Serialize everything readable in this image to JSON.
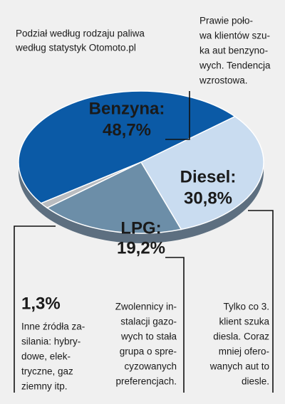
{
  "chart_data": {
    "type": "pie",
    "title": "Podział według rodzaju paliwa",
    "subtitle": "według statystyk Otomoto.pl",
    "categories": [
      "Benzyna:",
      "Diesel:",
      "LPG:",
      null
    ],
    "values": [
      48.7,
      30.8,
      19.2,
      1.3
    ],
    "value_labels": [
      "48,7%",
      "30,8%",
      "19,2%",
      "1,3%"
    ],
    "colors": [
      "#0b5aa6",
      "#c9dcf0",
      "#6c8ea8",
      "#b9bcc0"
    ],
    "annotations": [
      [
        "Prawie poło-",
        "wa klientów szu-",
        "ka aut benzyno-",
        "wych. Tendencja",
        "wzrostowa."
      ],
      [
        "Inne źródła za-",
        "silania: hybry-",
        "dowe, elek-",
        "tryczne, gaz",
        "ziemny itp."
      ],
      [
        "Zwolennicy in-",
        "stalacji gazo-",
        "wych to stała",
        "grupa o spre-",
        "cyzowanych",
        "preferencjach."
      ],
      [
        "Tylko co 3.",
        "klient szuka",
        "diesla. Coraz",
        "mniej ofero-",
        "wanych aut to",
        "diesle."
      ]
    ]
  }
}
